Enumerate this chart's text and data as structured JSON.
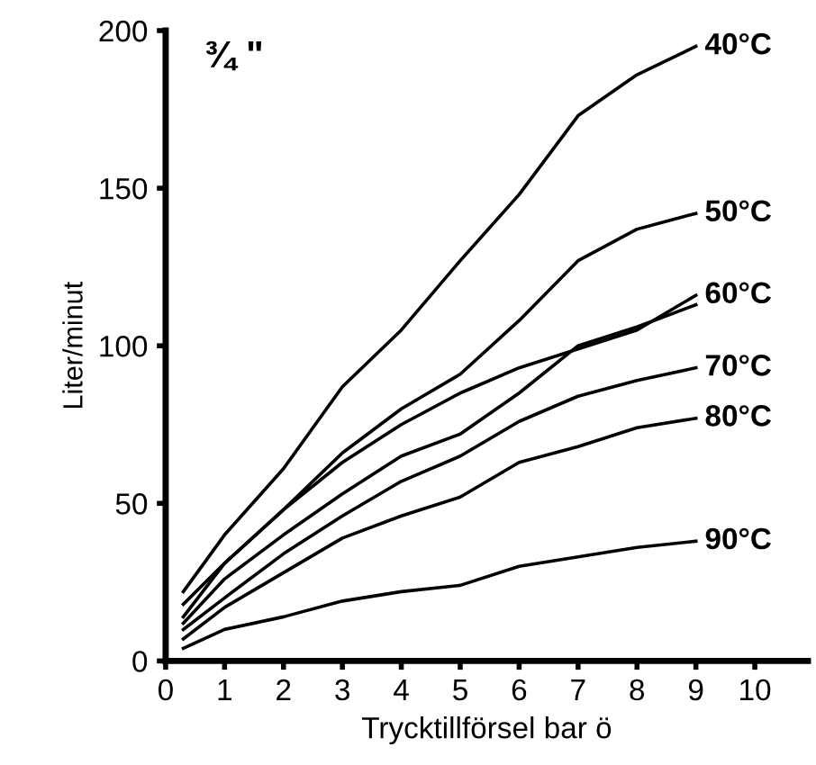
{
  "chart_data": {
    "type": "line",
    "xlabel": "Trycktillförsel bar ö",
    "ylabel": "Liter/minut",
    "annotations": [
      "¾ \""
    ],
    "x": [
      0.3,
      1,
      2,
      3,
      4,
      5,
      6,
      7,
      8,
      9
    ],
    "series": [
      {
        "name": "40°C",
        "color": "#000000",
        "values": [
          22,
          40,
          61,
          87,
          105,
          127,
          148,
          173,
          186,
          195
        ]
      },
      {
        "name": "50°C",
        "color": "#000000",
        "values": [
          18,
          31,
          48,
          66,
          80,
          91,
          108,
          127,
          137,
          142
        ]
      },
      {
        "name": "60°C",
        "color": "#000000",
        "values": [
          14,
          31,
          48,
          63,
          75,
          85,
          93,
          99,
          105,
          116
        ]
      },
      {
        "color": "#000000",
        "values": [
          12,
          26,
          40,
          53,
          65,
          72,
          85,
          100,
          106,
          113
        ]
      },
      {
        "name": "70°C",
        "color": "#000000",
        "values": [
          10,
          20,
          34,
          46,
          57,
          65,
          76,
          84,
          89,
          93
        ]
      },
      {
        "name": "80°C",
        "color": "#000000",
        "values": [
          7,
          17,
          28,
          39,
          46,
          52,
          63,
          68,
          74,
          77
        ]
      },
      {
        "name": "90°C",
        "color": "#000000",
        "values": [
          4,
          10,
          14,
          19,
          22,
          24,
          30,
          33,
          36,
          38
        ]
      }
    ],
    "xlim": [
      0,
      10.9
    ],
    "ylim": [
      0,
      200
    ],
    "xticks": [
      0,
      1,
      2,
      3,
      4,
      5,
      6,
      7,
      8,
      9,
      10
    ],
    "yticks": [
      0,
      50,
      100,
      150,
      200
    ],
    "grid": false,
    "legend": false,
    "marker": "none",
    "line_style": "solid"
  }
}
